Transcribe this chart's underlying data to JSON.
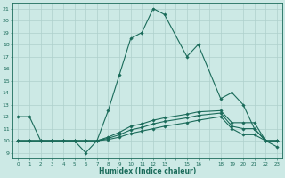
{
  "title": "",
  "xlabel": "Humidex (Indice chaleur)",
  "ylabel": "",
  "bg_color": "#cce9e5",
  "grid_color": "#aed0cc",
  "line_color": "#1a6b5a",
  "xlim": [
    -0.5,
    23.5
  ],
  "ylim": [
    8.5,
    21.5
  ],
  "yticks": [
    9,
    10,
    11,
    12,
    13,
    14,
    15,
    16,
    17,
    18,
    19,
    20,
    21
  ],
  "xtick_labels": [
    "0",
    "1",
    "2",
    "3",
    "4",
    "5",
    "6",
    "7",
    "8",
    "9",
    "10",
    "11",
    "12",
    "13",
    "",
    "15",
    "16",
    "",
    "18",
    "19",
    "20",
    "21",
    "22",
    "23"
  ],
  "series": [
    {
      "x": [
        0,
        1,
        2,
        3,
        4,
        5,
        6,
        7,
        8,
        9,
        10,
        11,
        12,
        13,
        15,
        16,
        18,
        19,
        20,
        21,
        22,
        23
      ],
      "y": [
        12,
        12,
        10,
        10,
        10,
        10,
        9,
        10,
        12.5,
        15.5,
        18.5,
        19,
        21,
        20.5,
        17,
        18,
        13.5,
        14,
        13,
        11,
        10,
        9.5
      ],
      "marker": "D",
      "markersize": 1.8,
      "linewidth": 0.8
    },
    {
      "x": [
        0,
        1,
        2,
        3,
        4,
        5,
        6,
        7,
        8,
        9,
        10,
        11,
        12,
        13,
        15,
        16,
        18,
        19,
        20,
        21,
        22,
        23
      ],
      "y": [
        10,
        10,
        10,
        10,
        10,
        10,
        10,
        10,
        10.1,
        10.3,
        10.6,
        10.8,
        11.0,
        11.2,
        11.5,
        11.7,
        12.0,
        11.0,
        10.5,
        10.5,
        10,
        10
      ],
      "marker": "D",
      "markersize": 1.8,
      "linewidth": 0.8
    },
    {
      "x": [
        0,
        1,
        2,
        3,
        4,
        5,
        6,
        7,
        8,
        9,
        10,
        11,
        12,
        13,
        15,
        16,
        18,
        19,
        20,
        21,
        22,
        23
      ],
      "y": [
        10,
        10,
        10,
        10,
        10,
        10,
        10,
        10,
        10.2,
        10.5,
        10.9,
        11.1,
        11.4,
        11.6,
        11.9,
        12.1,
        12.3,
        11.2,
        11.0,
        11.0,
        10,
        10
      ],
      "marker": "D",
      "markersize": 1.8,
      "linewidth": 0.8
    },
    {
      "x": [
        0,
        1,
        2,
        3,
        4,
        5,
        6,
        7,
        8,
        9,
        10,
        11,
        12,
        13,
        15,
        16,
        18,
        19,
        20,
        21,
        22,
        23
      ],
      "y": [
        10,
        10,
        10,
        10,
        10,
        10,
        10,
        10,
        10.3,
        10.7,
        11.2,
        11.4,
        11.7,
        11.9,
        12.2,
        12.4,
        12.5,
        11.5,
        11.5,
        11.5,
        10,
        10
      ],
      "marker": "D",
      "markersize": 1.8,
      "linewidth": 0.8
    }
  ]
}
